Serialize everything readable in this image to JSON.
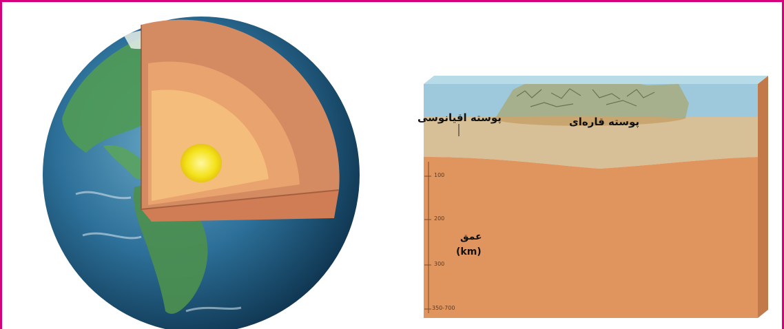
{
  "figure": {
    "border_color": "#d6007e",
    "labels": {
      "oceanic_crust": "پوسته اقیانوسی",
      "continental_crust": "پوسته قاره‌ای",
      "depth_word": "عمق",
      "depth_unit": "(km)"
    },
    "depth_ticks": [
      "100",
      "200",
      "300",
      "350-700"
    ]
  },
  "colors": {
    "ocean": "#2c6f98",
    "land": "#4f9a57",
    "crust_section": "#d58b62",
    "mantle_section": "#f2b36b",
    "outer_core_section": "#f7c88a",
    "inner_core": "#f4e21a",
    "block_sea": "#9ec9dc",
    "block_crust": "#d7bf97",
    "block_mantle": "#e0955e"
  }
}
